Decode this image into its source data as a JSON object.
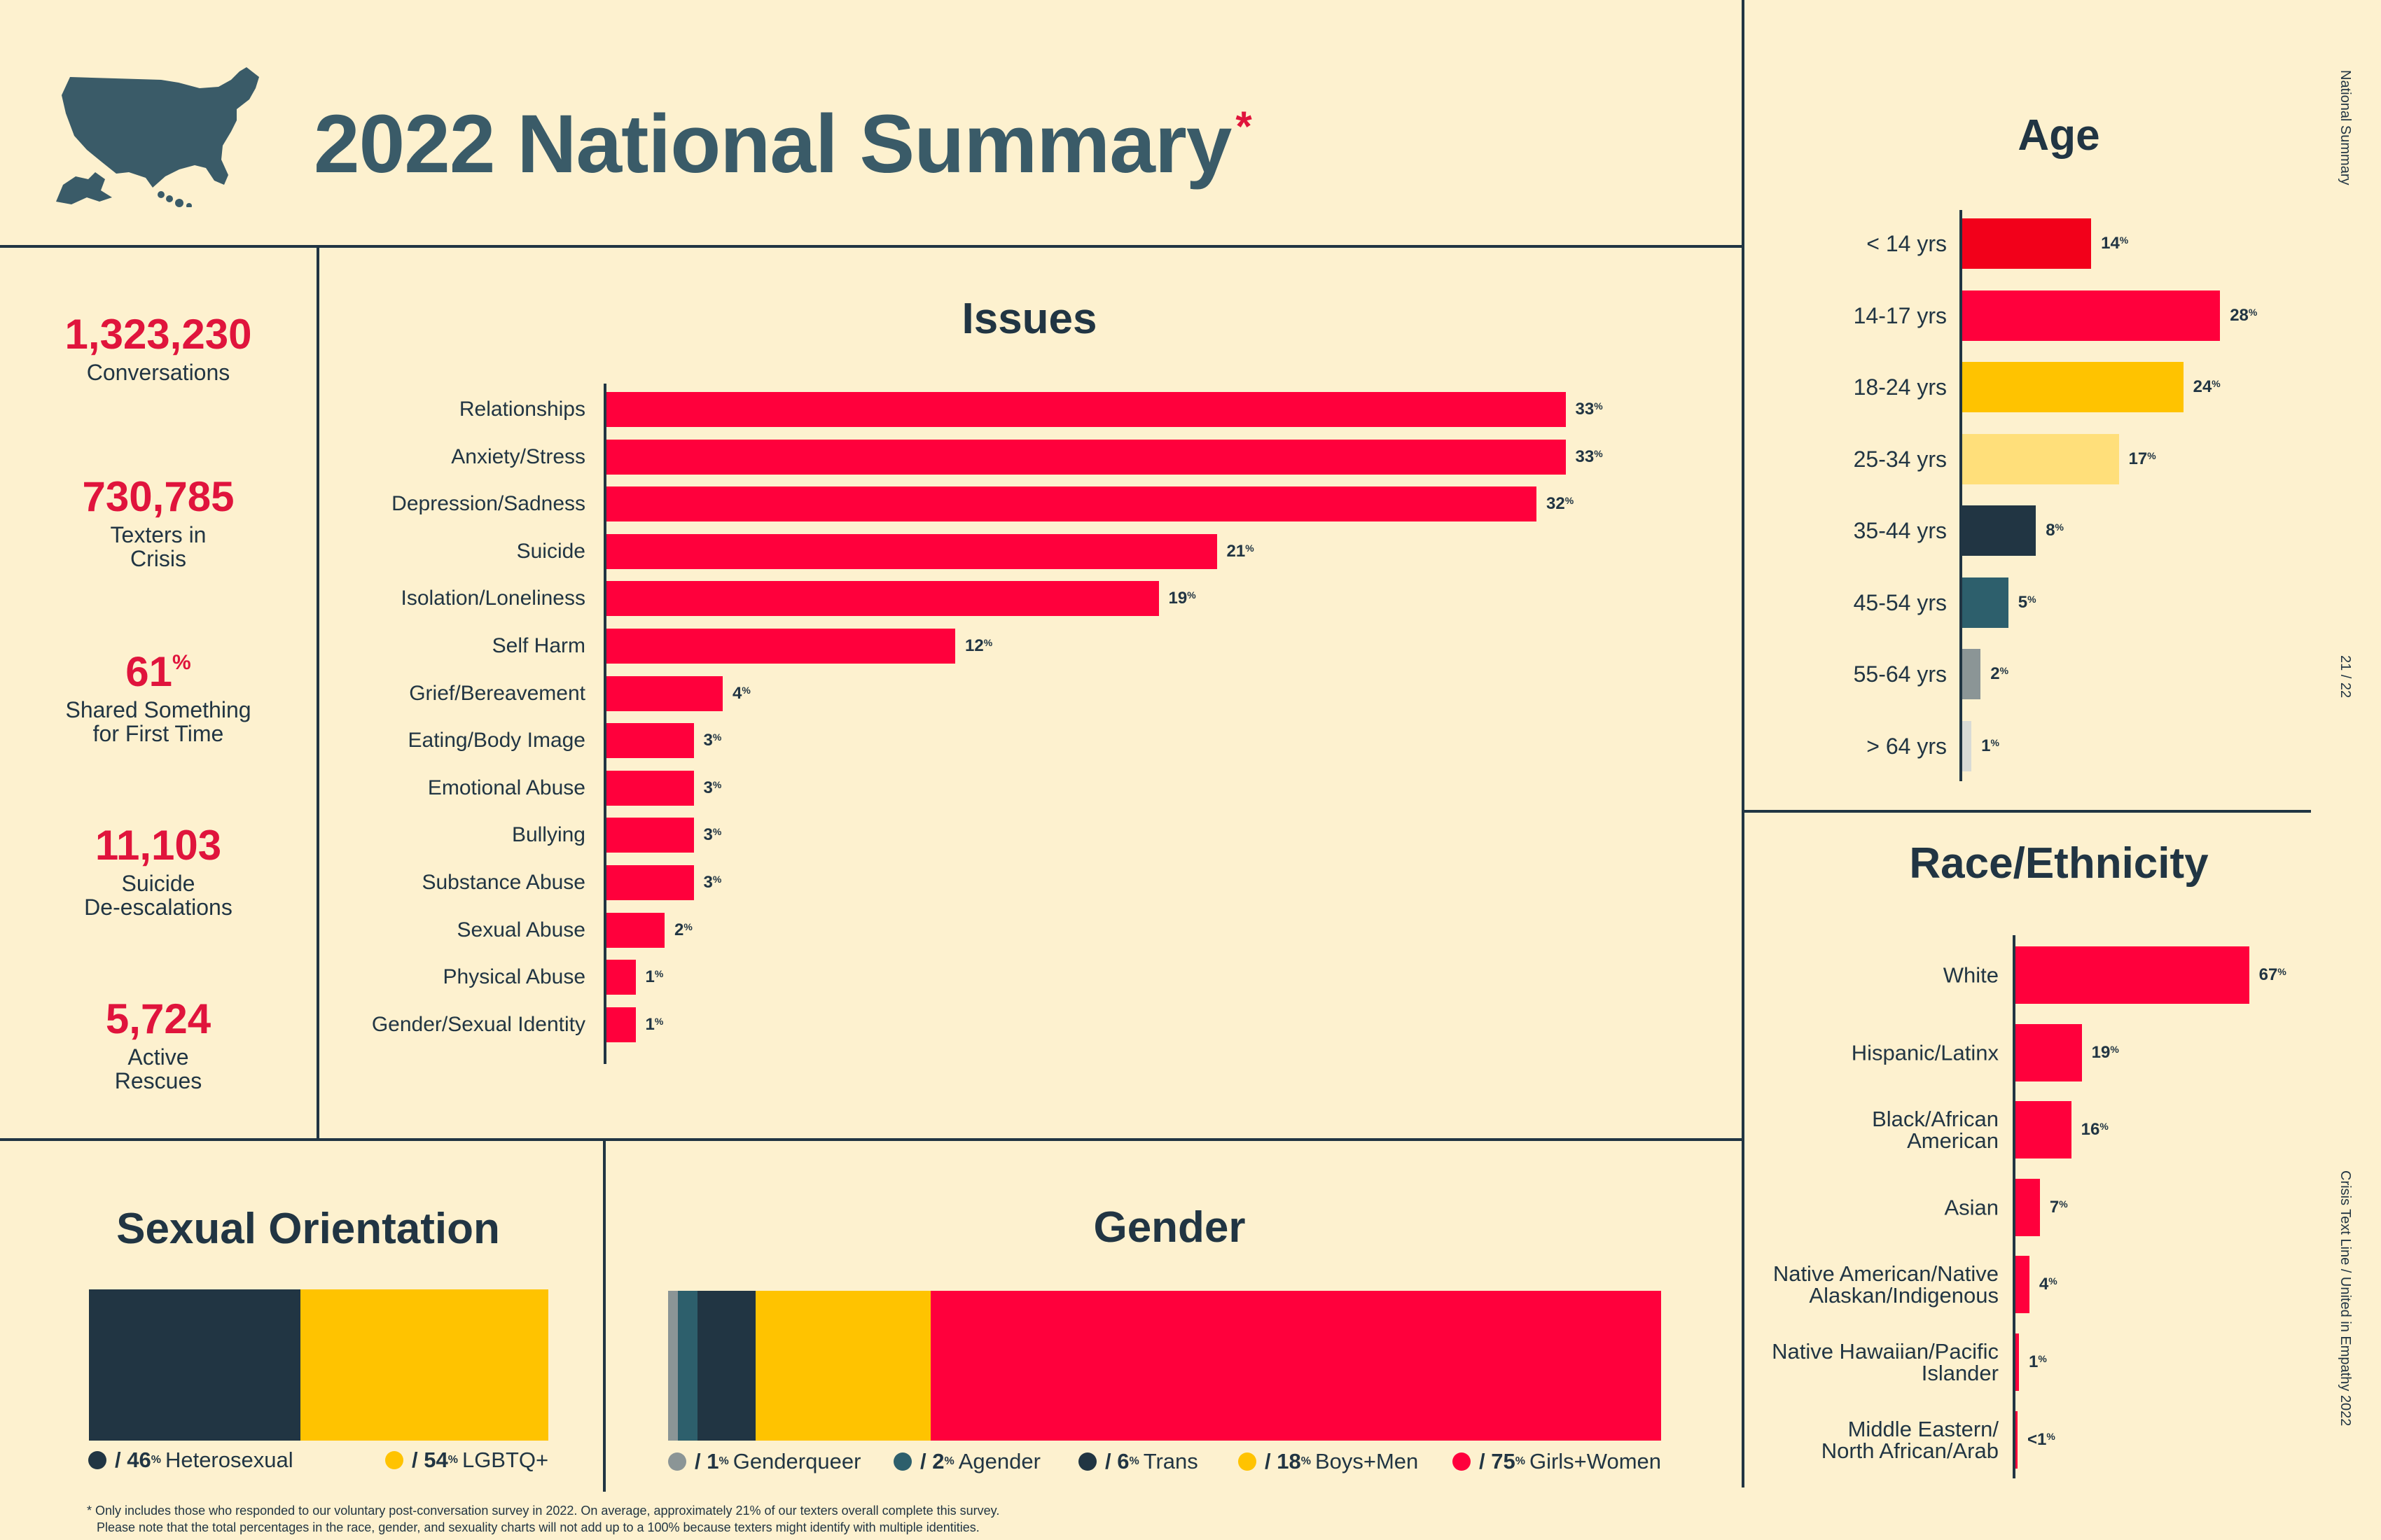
{
  "header": {
    "title": "2022 National Summary",
    "asterisk": "*",
    "map_icon": "usa-map-icon"
  },
  "stats": [
    {
      "value": "1,323,230",
      "label": "Conversations"
    },
    {
      "value": "730,785",
      "label": "Texters in\nCrisis"
    },
    {
      "value": "61%",
      "label": "Shared Something\nfor First Time"
    },
    {
      "value": "11,103",
      "label": "Suicide\nDe-escalations"
    },
    {
      "value": "5,724",
      "label": "Active\nRescues"
    }
  ],
  "side": {
    "top": "National Summary",
    "page": "21 / 22",
    "bottom": "Crisis Text Line  /  United in Empathy 2022"
  },
  "footnote": {
    "line1": "* Only includes those who responded to our voluntary post-conversation survey in 2022. On average, approximately 21% of our texters overall complete this survey.",
    "line2": "Please note that the total percentages in the race, gender, and sexuality charts will not add up to a 100% because texters might identify with multiple identities."
  },
  "colors": {
    "background": "#fdf1cf",
    "red": "#ff003c",
    "dark": "#213543",
    "teal": "#2d5f6c",
    "yellow": "#ffc300",
    "light_yellow": "#ffdf7a",
    "gray": "#8b9596",
    "light_gray": "#d9dbd6",
    "bright_red": "#f2001a"
  },
  "chart_data": [
    {
      "type": "bar",
      "orientation": "horizontal",
      "title": "Issues",
      "unit": "%",
      "categories": [
        "Relationships",
        "Anxiety/Stress",
        "Depression/Sadness",
        "Suicide",
        "Isolation/Loneliness",
        "Self Harm",
        "Grief/Bereavement",
        "Eating/Body Image",
        "Emotional Abuse",
        "Bullying",
        "Substance Abuse",
        "Sexual Abuse",
        "Physical Abuse",
        "Gender/Sexual Identity"
      ],
      "values": [
        33,
        33,
        32,
        21,
        19,
        12,
        4,
        3,
        3,
        3,
        3,
        2,
        1,
        1
      ],
      "labels": [
        "33%",
        "33%",
        "32%",
        "21%",
        "19%",
        "12%",
        "4%",
        "3%",
        "3%",
        "3%",
        "3%",
        "2%",
        "1%",
        "1%"
      ],
      "colors": [
        "#ff003c"
      ]
    },
    {
      "type": "bar",
      "orientation": "horizontal",
      "title": "Age",
      "unit": "%",
      "categories": [
        "< 14 yrs",
        "14-17 yrs",
        "18-24 yrs",
        "25-34 yrs",
        "35-44 yrs",
        "45-54 yrs",
        "55-64 yrs",
        "> 64 yrs"
      ],
      "values": [
        14,
        28,
        24,
        17,
        8,
        5,
        2,
        1
      ],
      "labels": [
        "14%",
        "28%",
        "24%",
        "17%",
        "8%",
        "5%",
        "2%",
        "1%"
      ],
      "colors": [
        "#f2001a",
        "#ff003c",
        "#ffc300",
        "#ffdf7a",
        "#213543",
        "#2d5f6c",
        "#8b9596",
        "#d9dbd6"
      ]
    },
    {
      "type": "bar",
      "orientation": "horizontal",
      "title": "Race/Ethnicity",
      "unit": "%",
      "categories": [
        "White",
        "Hispanic/Latinx",
        "Black/African\nAmerican",
        "Asian",
        "Native American/Native\nAlaskan/Indigenous",
        "Native Hawaiian/Pacific\nIslander",
        "Middle Eastern/\nNorth African/Arab"
      ],
      "values": [
        67,
        19,
        16,
        7,
        4,
        1,
        0.5
      ],
      "labels": [
        "67%",
        "19%",
        "16%",
        "7%",
        "4%",
        "1%",
        "<1%"
      ],
      "colors": [
        "#ff003c"
      ]
    },
    {
      "type": "bar",
      "orientation": "horizontal-stacked",
      "title": "Sexual Orientation",
      "unit": "%",
      "series": [
        {
          "name": "Heterosexual",
          "value": 46,
          "label": "46%",
          "color": "#213543"
        },
        {
          "name": "LGBTQ+",
          "value": 54,
          "label": "54%",
          "color": "#ffc300"
        }
      ]
    },
    {
      "type": "bar",
      "orientation": "horizontal-stacked",
      "title": "Gender",
      "unit": "%",
      "series": [
        {
          "name": "Genderqueer",
          "value": 1,
          "label": "1%",
          "color": "#8b9596"
        },
        {
          "name": "Agender",
          "value": 2,
          "label": "2%",
          "color": "#2d5f6c"
        },
        {
          "name": "Trans",
          "value": 6,
          "label": "6%",
          "color": "#213543"
        },
        {
          "name": "Boys+Men",
          "value": 18,
          "label": "18%",
          "color": "#ffc300"
        },
        {
          "name": "Girls+Women",
          "value": 75,
          "label": "75%",
          "color": "#ff003c"
        }
      ]
    }
  ]
}
